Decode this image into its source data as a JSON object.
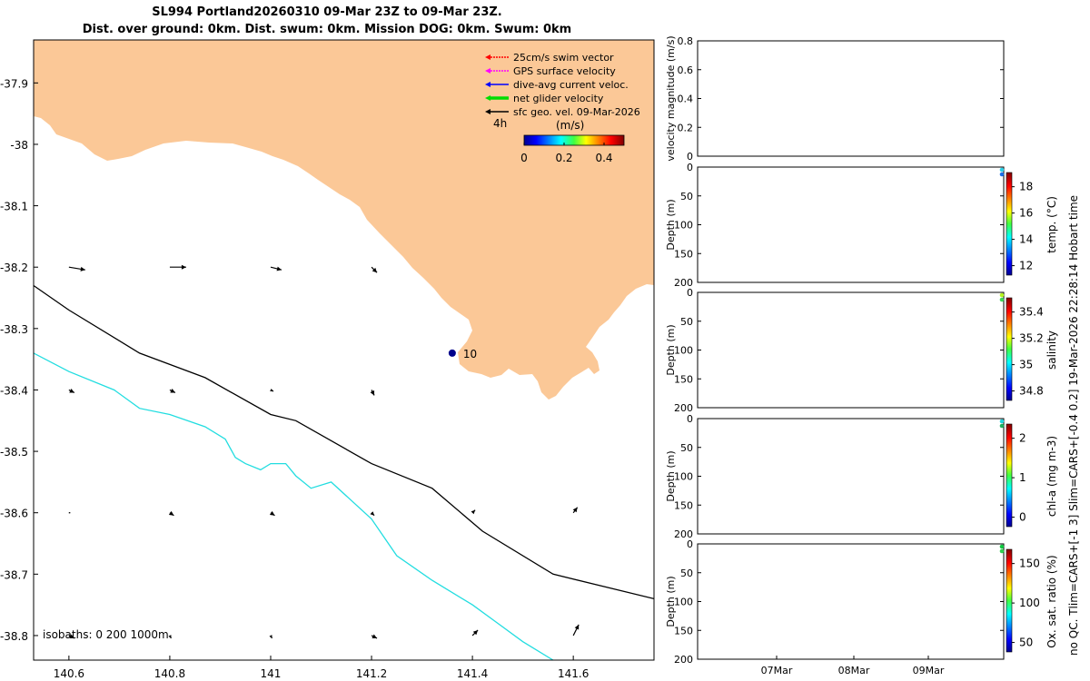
{
  "header": {
    "line1": "SL994 Portland20260310 09-Mar 23Z to 09-Mar 23Z.",
    "line2": "Dist. over ground: 0km. Dist. swum: 0km. Mission DOG: 0km. Swum: 0km"
  },
  "side_note": "no QC. Tlim=CARS+[-1 3] Slim=CARS+[-0.4 0.2] 19-Mar-2026 22:28:14 Hobart time",
  "map": {
    "legend": {
      "items": [
        {
          "label": "25cm/s swim vector",
          "color": "#ff0000"
        },
        {
          "label": "GPS surface velocity",
          "color": "#ff00ff"
        },
        {
          "label": "dive-avg current veloc.",
          "color": "#0000ff"
        },
        {
          "label": "net glider velocity",
          "color": "#00dd00"
        },
        {
          "label": "sfc geo. vel. 09-Mar-2026",
          "color": "#000000"
        }
      ],
      "sub": "4h"
    },
    "colorbar": {
      "title": "(m/s)",
      "ticks": [
        "0",
        "0.2",
        "0.4"
      ]
    },
    "isobath_label": "isobaths: 0   200  1000m",
    "point_label": "10",
    "land_color": "#fbc897",
    "iso200_color": "#000000",
    "iso1000_color": "#22dde0"
  },
  "chart_data": [
    {
      "type": "map",
      "x_ticks": [
        "140.6",
        "140.8",
        "141",
        "141.2",
        "141.4",
        "141.6"
      ],
      "y_ticks": [
        "-37.9",
        "-38",
        "-38.1",
        "-38.2",
        "-38.3",
        "-38.4",
        "-38.5",
        "-38.6",
        "-38.7",
        "-38.8"
      ],
      "xlim": [
        140.53,
        141.76
      ],
      "ylim": [
        -38.84,
        -37.83
      ],
      "glider_position": {
        "lon": 141.36,
        "lat": -38.34
      },
      "vectors": [
        {
          "lon": 140.6,
          "lat": -38.2,
          "u": 0.06,
          "v": -0.01
        },
        {
          "lon": 140.8,
          "lat": -38.2,
          "u": 0.06,
          "v": 0.0
        },
        {
          "lon": 141.0,
          "lat": -38.2,
          "u": 0.04,
          "v": -0.01
        },
        {
          "lon": 141.2,
          "lat": -38.2,
          "u": 0.02,
          "v": -0.02
        },
        {
          "lon": 140.6,
          "lat": -38.4,
          "u": 0.02,
          "v": -0.01
        },
        {
          "lon": 140.8,
          "lat": -38.4,
          "u": 0.02,
          "v": -0.01
        },
        {
          "lon": 141.0,
          "lat": -38.4,
          "u": 0.01,
          "v": -0.005
        },
        {
          "lon": 141.2,
          "lat": -38.4,
          "u": 0.01,
          "v": -0.02
        },
        {
          "lon": 140.6,
          "lat": -38.6,
          "u": 0.005,
          "v": 0.0
        },
        {
          "lon": 140.8,
          "lat": -38.6,
          "u": 0.015,
          "v": -0.01
        },
        {
          "lon": 141.0,
          "lat": -38.6,
          "u": 0.015,
          "v": -0.01
        },
        {
          "lon": 141.2,
          "lat": -38.6,
          "u": 0.01,
          "v": -0.01
        },
        {
          "lon": 141.4,
          "lat": -38.6,
          "u": 0.01,
          "v": 0.01
        },
        {
          "lon": 141.6,
          "lat": -38.6,
          "u": 0.015,
          "v": 0.02
        },
        {
          "lon": 140.6,
          "lat": -38.8,
          "u": 0.02,
          "v": -0.01
        },
        {
          "lon": 140.8,
          "lat": -38.8,
          "u": 0.005,
          "v": -0.01
        },
        {
          "lon": 141.0,
          "lat": -38.8,
          "u": 0.005,
          "v": -0.01
        },
        {
          "lon": 141.2,
          "lat": -38.8,
          "u": 0.02,
          "v": -0.01
        },
        {
          "lon": 141.4,
          "lat": -38.8,
          "u": 0.02,
          "v": 0.02
        },
        {
          "lon": 141.6,
          "lat": -38.8,
          "u": 0.02,
          "v": 0.04
        }
      ],
      "isobath_200": [
        [
          140.53,
          -38.23
        ],
        [
          140.6,
          -38.27
        ],
        [
          140.74,
          -38.34
        ],
        [
          140.87,
          -38.38
        ],
        [
          141.0,
          -38.44
        ],
        [
          141.05,
          -38.45
        ],
        [
          141.2,
          -38.52
        ],
        [
          141.32,
          -38.56
        ],
        [
          141.42,
          -38.63
        ],
        [
          141.56,
          -38.7
        ],
        [
          141.66,
          -38.72
        ],
        [
          141.76,
          -38.74
        ]
      ],
      "isobath_1000": [
        [
          140.53,
          -38.34
        ],
        [
          140.6,
          -38.37
        ],
        [
          140.69,
          -38.4
        ],
        [
          140.74,
          -38.43
        ],
        [
          140.8,
          -38.44
        ],
        [
          140.87,
          -38.46
        ],
        [
          140.91,
          -38.48
        ],
        [
          140.93,
          -38.51
        ],
        [
          140.95,
          -38.52
        ],
        [
          140.98,
          -38.53
        ],
        [
          141.0,
          -38.52
        ],
        [
          141.03,
          -38.52
        ],
        [
          141.05,
          -38.54
        ],
        [
          141.08,
          -38.56
        ],
        [
          141.12,
          -38.55
        ],
        [
          141.16,
          -38.58
        ],
        [
          141.2,
          -38.61
        ],
        [
          141.25,
          -38.67
        ],
        [
          141.32,
          -38.71
        ],
        [
          141.4,
          -38.75
        ],
        [
          141.45,
          -38.78
        ],
        [
          141.5,
          -38.81
        ],
        [
          141.56,
          -38.84
        ]
      ]
    },
    {
      "type": "line",
      "ylabel": "velocity magnitude (m/s)",
      "y_ticks": [
        "0",
        "0.2",
        "0.4",
        "0.6",
        "0.8"
      ],
      "ylim": [
        0,
        0.8
      ],
      "series": []
    },
    {
      "type": "scatter",
      "ylabel": "Depth (m)",
      "y_ticks": [
        "0",
        "50",
        "100",
        "150",
        "200"
      ],
      "ylim": [
        0,
        200
      ],
      "colorbar_label": "temp. (°C)",
      "colorbar_ticks": [
        "12",
        "14",
        "16",
        "18"
      ]
    },
    {
      "type": "scatter",
      "ylabel": "Depth (m)",
      "y_ticks": [
        "0",
        "50",
        "100",
        "150",
        "200"
      ],
      "ylim": [
        0,
        200
      ],
      "colorbar_label": "salinity",
      "colorbar_ticks": [
        "34.8",
        "35",
        "35.2",
        "35.4"
      ]
    },
    {
      "type": "scatter",
      "ylabel": "Depth (m)",
      "y_ticks": [
        "0",
        "50",
        "100",
        "150",
        "200"
      ],
      "ylim": [
        0,
        200
      ],
      "colorbar_label": "chl-a (mg m-3)",
      "colorbar_ticks": [
        "0",
        "1",
        "2"
      ]
    },
    {
      "type": "scatter",
      "ylabel": "Depth (m)",
      "y_ticks": [
        "0",
        "50",
        "100",
        "150",
        "200"
      ],
      "ylim": [
        0,
        200
      ],
      "colorbar_label": "Ox. sat. ratio (%)",
      "colorbar_ticks": [
        "50",
        "100",
        "150"
      ],
      "x_ticks": [
        "07Mar",
        "08Mar",
        "09Mar"
      ]
    }
  ]
}
